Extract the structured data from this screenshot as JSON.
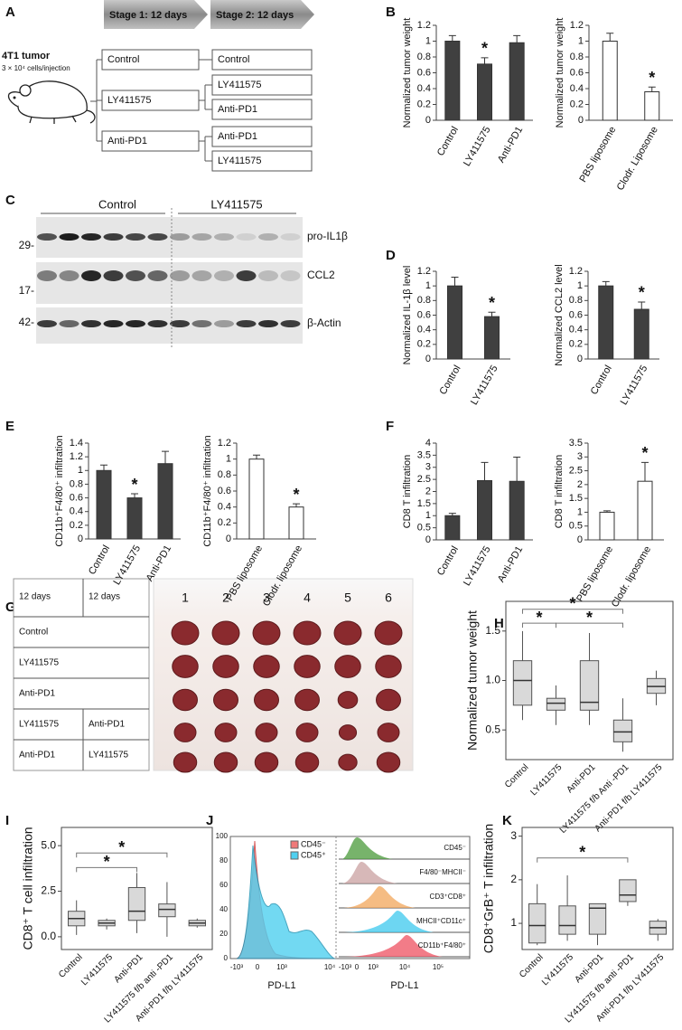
{
  "panel_labels": [
    "A",
    "B",
    "C",
    "D",
    "E",
    "F",
    "G",
    "H",
    "I",
    "J",
    "K"
  ],
  "schematic": {
    "stages": [
      "Stage 1: 12 days",
      "Stage 2: 12 days"
    ],
    "tumor": "4T1 tumor",
    "dose": "3 × 10⁴ cells/injection",
    "stage1": [
      "Control",
      "LY411575",
      "Anti-PD1"
    ],
    "stage2": [
      "Control",
      "LY411575",
      "Anti-PD1",
      "Anti-PD1",
      "LY411575"
    ]
  },
  "blot": {
    "groups": [
      "Control",
      "LY411575"
    ],
    "proteins": [
      "pro-IL1β",
      "CCL2",
      "β-Actin"
    ],
    "markers": [
      "29-",
      "17-",
      "42-"
    ]
  },
  "table": {
    "rows": [
      [
        "12 days",
        "12 days"
      ],
      [
        "Control"
      ],
      [
        "LY411575"
      ],
      [
        "Anti-PD1"
      ],
      [
        "LY411575",
        "Anti-PD1"
      ],
      [
        "Anti-PD1",
        "LY411575"
      ]
    ]
  },
  "photo": {
    "columns": [
      "1",
      "2",
      "3",
      "4",
      "5",
      "6"
    ]
  },
  "flow": {
    "legend": [
      "CD45⁻",
      "CD45⁺"
    ],
    "yticks": [
      "0",
      "20",
      "40",
      "60",
      "80",
      "100"
    ],
    "left_xticks": [
      "-10³",
      "0",
      "10³",
      "10⁴"
    ],
    "right_xticks": [
      "-10³",
      "0",
      "10³",
      "10⁴",
      "10⁵"
    ],
    "xlabel": "PD-L1",
    "populations": [
      "CD45⁻",
      "F4/80⁻MHCII⁻",
      "CD3⁺CD8⁺",
      "MHCII⁺CD11c⁺",
      "CD11b⁺F4/80⁺"
    ]
  },
  "chart_data": [
    {
      "type": "bar",
      "ylabel": "Normalized tumor weight",
      "categories": [
        "Control",
        "LY411575",
        "Anti-PD1"
      ],
      "values": [
        1.0,
        0.71,
        0.98
      ],
      "errors": [
        0.07,
        0.08,
        0.09
      ],
      "significance": [
        null,
        "*",
        null
      ],
      "color": "#404040",
      "ylim": [
        0,
        1.2
      ],
      "yticks": [
        0,
        0.2,
        0.4,
        0.6,
        0.8,
        1,
        1.2
      ]
    },
    {
      "type": "bar",
      "ylabel": "Normalized tumor weight",
      "categories": [
        "PBS liposome",
        "Clodr. Liposome"
      ],
      "values": [
        1.0,
        0.36
      ],
      "errors": [
        0.1,
        0.06
      ],
      "significance": [
        null,
        "*"
      ],
      "color": "#ffffff",
      "ylim": [
        0,
        1.2
      ],
      "yticks": [
        0,
        0.2,
        0.4,
        0.6,
        0.8,
        1,
        1.2
      ]
    },
    {
      "type": "bar",
      "ylabel": "Normalized IL-1β level",
      "categories": [
        "Control",
        "LY411575"
      ],
      "values": [
        1.0,
        0.58
      ],
      "errors": [
        0.12,
        0.06
      ],
      "significance": [
        null,
        "*"
      ],
      "color": "#404040",
      "ylim": [
        0,
        1.2
      ],
      "yticks": [
        0,
        0.2,
        0.4,
        0.6,
        0.8,
        1,
        1.2
      ]
    },
    {
      "type": "bar",
      "ylabel": "Normalized CCL2 level",
      "categories": [
        "Control",
        "LY411575"
      ],
      "values": [
        1.0,
        0.68
      ],
      "errors": [
        0.06,
        0.1
      ],
      "significance": [
        null,
        "*"
      ],
      "color": "#404040",
      "ylim": [
        0,
        1.2
      ],
      "yticks": [
        0,
        0.2,
        0.4,
        0.6,
        0.8,
        1,
        1.2
      ]
    },
    {
      "type": "bar",
      "ylabel": "CD11b⁺F4/80⁺ infiltration",
      "categories": [
        "Control",
        "LY411575",
        "Anti-PD1"
      ],
      "values": [
        1.0,
        0.6,
        1.1
      ],
      "errors": [
        0.08,
        0.06,
        0.18
      ],
      "significance": [
        null,
        "*",
        null
      ],
      "color": "#404040",
      "ylim": [
        0,
        1.4
      ],
      "yticks": [
        0,
        0.2,
        0.4,
        0.6,
        0.8,
        1,
        1.2,
        1.4
      ]
    },
    {
      "type": "bar",
      "ylabel": "CD11b⁺F4/80⁺ infiltration",
      "categories": [
        "PBS liposome",
        "Clodr. liposome"
      ],
      "values": [
        1.0,
        0.4
      ],
      "errors": [
        0.05,
        0.04
      ],
      "significance": [
        null,
        "*"
      ],
      "color": "#ffffff",
      "ylim": [
        0,
        1.2
      ],
      "yticks": [
        0,
        0.2,
        0.4,
        0.6,
        0.8,
        1,
        1.2
      ]
    },
    {
      "type": "bar",
      "ylabel": "CD8 T infiltration",
      "categories": [
        "Control",
        "LY411575",
        "Anti-PD1"
      ],
      "values": [
        1.0,
        2.45,
        2.42
      ],
      "errors": [
        0.1,
        0.75,
        1.0
      ],
      "significance": [
        null,
        null,
        null
      ],
      "color": "#404040",
      "ylim": [
        0,
        4
      ],
      "yticks": [
        0,
        0.5,
        1,
        1.5,
        2,
        2.5,
        3,
        3.5,
        4
      ]
    },
    {
      "type": "bar",
      "ylabel": "CD8 T infiltration",
      "categories": [
        "PBS liposome",
        "Clodr. liposome"
      ],
      "values": [
        1.0,
        2.12
      ],
      "errors": [
        0.05,
        0.68
      ],
      "significance": [
        null,
        "*"
      ],
      "color": "#ffffff",
      "ylim": [
        0,
        3.5
      ],
      "yticks": [
        0,
        0.5,
        1,
        1.5,
        2,
        2.5,
        3,
        3.5
      ]
    },
    {
      "type": "box",
      "ylabel": "Normalized tumor weight",
      "categories": [
        "Control",
        "LY411575",
        "Anti-PD1",
        "LY411575 f/b Anti -PD1",
        "Anti-PD1 f/b LY411575"
      ],
      "min": [
        0.6,
        0.55,
        0.55,
        0.28,
        0.75
      ],
      "q1": [
        0.75,
        0.7,
        0.7,
        0.38,
        0.87
      ],
      "median": [
        1.0,
        0.77,
        0.78,
        0.48,
        0.94
      ],
      "q3": [
        1.2,
        0.82,
        1.2,
        0.6,
        1.02
      ],
      "max": [
        1.5,
        0.95,
        1.48,
        0.82,
        1.1
      ],
      "color": "#d9d9d9",
      "ylim": [
        0.2,
        1.8
      ],
      "yticks": [
        0.5,
        {
          "value": 1,
          "label": "1.0"
        },
        1.5
      ],
      "brackets": [
        {
          "pair": [
            "Control",
            "LY411575"
          ],
          "y": 1.58,
          "label": "*"
        },
        {
          "pair": [
            "LY411575",
            "LY411575 f/b Anti -PD1"
          ],
          "y": 1.58,
          "label": "*"
        },
        {
          "pair": [
            "Control",
            "LY411575 f/b Anti -PD1"
          ],
          "y": 1.72,
          "label": "*"
        }
      ]
    },
    {
      "type": "box",
      "ylabel": "CD8⁺ T cell infiltration",
      "categories": [
        "Control",
        "LY411575",
        "Anti-PD1",
        "LY411575 f/b anti -PD1",
        "Anti-PD1 f/b LY411575"
      ],
      "min": [
        0.1,
        0.4,
        0.2,
        0.0,
        0.5
      ],
      "q1": [
        0.6,
        0.6,
        0.9,
        1.1,
        0.6
      ],
      "median": [
        1.0,
        0.75,
        1.4,
        1.5,
        0.75
      ],
      "q3": [
        1.4,
        0.9,
        2.7,
        1.8,
        0.9
      ],
      "max": [
        2.0,
        1.0,
        3.5,
        3.0,
        1.0
      ],
      "color": "#d9d9d9",
      "ylim": [
        -0.7,
        6
      ],
      "yticks": [
        {
          "value": 0,
          "label": "0.0"
        },
        2.5,
        {
          "value": 5,
          "label": "5.0"
        }
      ],
      "brackets": [
        {
          "pair": [
            "Control",
            "Anti-PD1"
          ],
          "y": 3.8,
          "label": "*"
        },
        {
          "pair": [
            "Control",
            "LY411575 f/b anti -PD1"
          ],
          "y": 4.6,
          "label": "*"
        }
      ]
    },
    {
      "type": "box",
      "ylabel": "CD8⁺GrB⁺ T infiltration",
      "categories": [
        "Control",
        "LY411575",
        "Anti-PD1",
        "LY411575 f/b anti -PD1",
        "Anti-PD1 f/b LY411575"
      ],
      "min": [
        0.5,
        0.6,
        0.5,
        1.4,
        0.6
      ],
      "q1": [
        0.55,
        0.75,
        0.75,
        1.5,
        0.75
      ],
      "median": [
        0.95,
        0.95,
        1.35,
        1.65,
        0.9
      ],
      "q3": [
        1.45,
        1.4,
        1.45,
        2.0,
        1.05
      ],
      "max": [
        1.9,
        2.1,
        1.45,
        2.0,
        1.1
      ],
      "color": "#d9d9d9",
      "ylim": [
        0.4,
        3.2
      ],
      "yticks": [
        1,
        2,
        3
      ],
      "brackets": [
        {
          "pair": [
            "Control",
            "LY411575 f/b anti -PD1"
          ],
          "y": 2.5,
          "label": "*"
        }
      ]
    }
  ]
}
